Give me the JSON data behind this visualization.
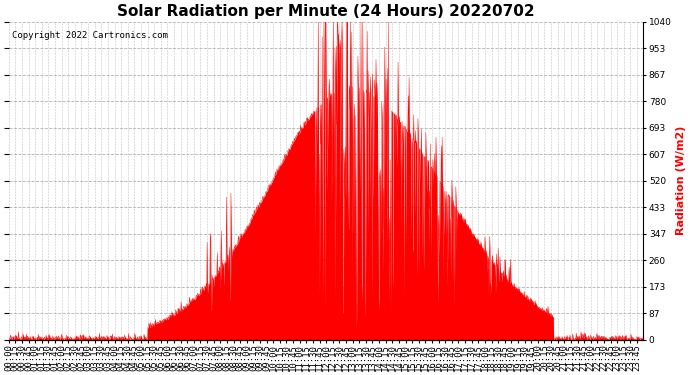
{
  "title": "Solar Radiation per Minute (24 Hours) 20220702",
  "ylabel": "Radiation (W/m2)",
  "copyright_text": "Copyright 2022 Cartronics.com",
  "y_ticks": [
    0.0,
    86.7,
    173.3,
    260.0,
    346.7,
    433.3,
    520.0,
    606.7,
    693.3,
    780.0,
    866.7,
    953.3,
    1040.0
  ],
  "y_max": 1040.0,
  "y_min": 0.0,
  "fill_color": "#FF0000",
  "line_color": "#FF0000",
  "dashed_line_color": "#FF0000",
  "grid_color": "#AAAAAA",
  "background_color": "#FFFFFF",
  "title_fontsize": 11,
  "label_fontsize": 8,
  "tick_fontsize": 6.5
}
